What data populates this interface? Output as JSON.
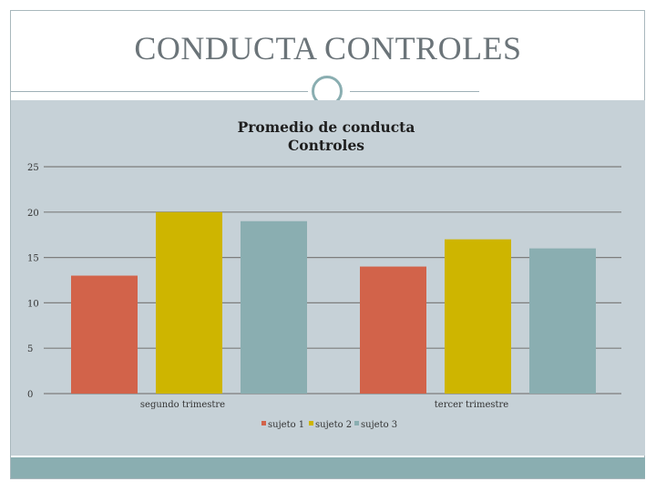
{
  "slide": {
    "title": "CONDUCTA CONTROLES",
    "colors": {
      "panel": "#c6d1d7",
      "footer": "#8aaeb1",
      "ring": "#8aaeb1",
      "title": "#6b7479"
    }
  },
  "chart_data": {
    "type": "bar",
    "title_lines": [
      "Promedio de conducta",
      "Controles"
    ],
    "categories": [
      "segundo trimestre",
      "tercer trimestre"
    ],
    "series": [
      {
        "name": "sujeto 1",
        "color": "#d2634a",
        "values": [
          13,
          14
        ]
      },
      {
        "name": "sujeto 2",
        "color": "#ceb500",
        "values": [
          20,
          17
        ]
      },
      {
        "name": "sujeto 3",
        "color": "#8aaeb1",
        "values": [
          19,
          16
        ]
      }
    ],
    "ylim": [
      0,
      25
    ],
    "yticks": [
      0,
      5,
      10,
      15,
      20,
      25
    ],
    "grid": true,
    "legend": "bottom"
  }
}
